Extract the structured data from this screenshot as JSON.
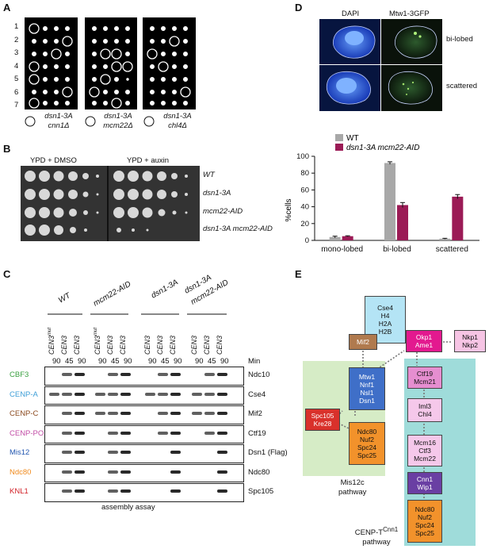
{
  "panels": {
    "A": "A",
    "B": "B",
    "C": "C",
    "D": "D",
    "E": "E"
  },
  "panelA": {
    "rows": [
      "1",
      "2",
      "3",
      "4",
      "5",
      "6",
      "7"
    ],
    "legends": [
      {
        "line1": "dsn1-3A",
        "line2": "cnn1Δ"
      },
      {
        "line1": "dsn1-3A",
        "line2": "mcm22Δ"
      },
      {
        "line1": "dsn1-3A",
        "line2": "chl4Δ"
      }
    ]
  },
  "panelB": {
    "conditions": [
      "YPD + DMSO",
      "YPD + auxin"
    ],
    "strains": [
      "WT",
      "dsn1-3A",
      "mcm22-AID",
      "dsn1-3A mcm22-AID"
    ]
  },
  "panelC": {
    "groups": [
      "WT",
      "mcm22-AID",
      "dsn1-3A",
      "dsn1-3A",
      "mcm22-AID"
    ],
    "lane_labels": [
      "CEN3",
      "mut",
      "CEN3",
      "CEN3"
    ],
    "times": [
      "90",
      "45",
      "90"
    ],
    "min_label": "Min",
    "rows": [
      {
        "left": "CBF3",
        "right": "Ndc10",
        "color": "#3aa040"
      },
      {
        "left": "CENP-A",
        "right": "Cse4",
        "color": "#3f9fd8"
      },
      {
        "left": "CENP-C",
        "right": "Mif2",
        "color": "#8b4a1f"
      },
      {
        "left": "CENP-PO",
        "right": "Ctf19",
        "color": "#c24da6"
      },
      {
        "left": "Mis12",
        "right": "Dsn1 (Flag)",
        "color": "#2357b0"
      },
      {
        "left": "Ndc80",
        "right": "Ndc80",
        "color": "#f08a1c"
      },
      {
        "left": "KNL1",
        "right": "Spc105",
        "color": "#d11f26"
      }
    ],
    "footer": "assembly assay"
  },
  "panelD": {
    "image_headers": [
      "DAPI",
      "Mtw1-3GFP"
    ],
    "row_labels": [
      "bi-lobed",
      "scattered"
    ],
    "chart_data": {
      "type": "bar",
      "categories": [
        "mono-lobed",
        "bi-lobed",
        "scattered"
      ],
      "series": [
        {
          "name": "WT",
          "values": [
            4,
            92,
            2
          ],
          "errors": [
            1,
            1.5,
            0.5
          ],
          "color": "#a8a8a8"
        },
        {
          "name": "dsn1-3A mcm22-AID",
          "values": [
            5,
            42,
            52
          ],
          "errors": [
            0.5,
            3,
            2.5
          ],
          "color": "#9b1b56"
        }
      ],
      "ylabel": "%cells",
      "ylim": [
        0,
        100
      ],
      "yticks": [
        "0",
        "20",
        "40",
        "60",
        "80",
        "100"
      ]
    }
  },
  "panelE": {
    "cse4": [
      "Cse4",
      "H4",
      "H2A",
      "H2B"
    ],
    "mif2": [
      "Mif2"
    ],
    "okp1": [
      "Okp1",
      "Ame1"
    ],
    "nkp1": [
      "Nkp1",
      "Nkp2"
    ],
    "mtw1": [
      "Mtw1",
      "Nnf1",
      "Nsl1",
      "Dsn1"
    ],
    "spc105": [
      "Spc105",
      "Kre28"
    ],
    "ndc80a": [
      "Ndc80",
      "Nuf2",
      "Spc24",
      "Spc25"
    ],
    "ctf19": [
      "Ctf19",
      "Mcm21"
    ],
    "iml3": [
      "Iml3",
      "Chl4"
    ],
    "mcm16": [
      "Mcm16",
      "Ctf3",
      "Mcm22"
    ],
    "cnn1": [
      "Cnn1",
      "Wip1"
    ],
    "ndc80b": [
      "Ndc80",
      "Nuf2",
      "Spc24",
      "Spc25"
    ],
    "mis12_pathway": [
      "Mis12c",
      "pathway"
    ],
    "cenp_pathway": {
      "prefix": "CENP-T",
      "sup": "Cnn1",
      "line2": "pathway"
    }
  }
}
